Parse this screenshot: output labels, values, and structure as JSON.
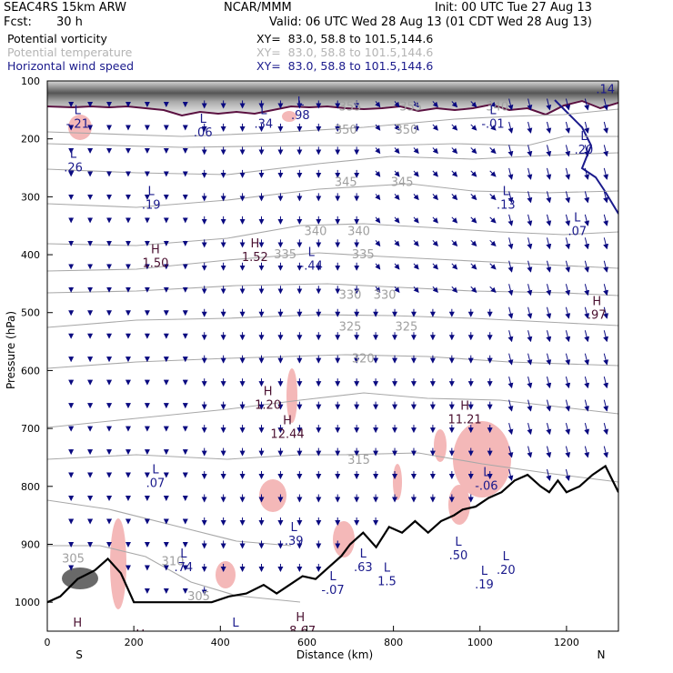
{
  "header": {
    "model": "SEAC4RS 15km ARW",
    "center": "NCAR/MMM",
    "init": "Init: 00 UTC Tue 27 Aug 13",
    "fcst_label": "Fcst:",
    "fcst_value": "30 h",
    "valid": "Valid: 06 UTC Wed 28 Aug 13 (01 CDT Wed 28 Aug 13)"
  },
  "legend": [
    {
      "field": "Potential vorticity",
      "xy": "XY=  83.0, 58.8 to 101.5,144.6",
      "color": "#000000"
    },
    {
      "field": "Potential temperature",
      "xy": "XY=  83.0, 58.8 to 101.5,144.6",
      "color": "#b4b4b4"
    },
    {
      "field": "Horizontal wind speed",
      "xy": "XY=  83.0, 58.8 to 101.5,144.6",
      "color": "#1a1a8c"
    }
  ],
  "colors": {
    "pv_fill": "#f4b8b8",
    "pv_contour": "#5a1040",
    "theta": "#a8a8a8",
    "wind": "#0a0a80",
    "terrain": "#000000"
  },
  "chart_data": {
    "type": "cross-section",
    "xlabel": "Distance (km)",
    "ylabel": "Pressure (hPa)",
    "xlim": [
      0,
      1320
    ],
    "ylim": [
      1050,
      100
    ],
    "x_ticks": [
      "0",
      "200",
      "400",
      "600",
      "800",
      "1000",
      "1200"
    ],
    "y_ticks": [
      "100",
      "200",
      "300",
      "400",
      "500",
      "600",
      "700",
      "800",
      "900",
      "1000"
    ],
    "endpoints": {
      "left": "S",
      "right": "N"
    },
    "theta_labels": [
      {
        "text": "355",
        "x": 700,
        "p": 145
      },
      {
        "text": "355",
        "x": 840,
        "p": 145
      },
      {
        "text": "350",
        "x": 690,
        "p": 185
      },
      {
        "text": "350",
        "x": 830,
        "p": 185
      },
      {
        "text": "345",
        "x": 690,
        "p": 275
      },
      {
        "text": "345",
        "x": 820,
        "p": 275
      },
      {
        "text": "340",
        "x": 620,
        "p": 360
      },
      {
        "text": "340",
        "x": 720,
        "p": 360
      },
      {
        "text": "335",
        "x": 550,
        "p": 400
      },
      {
        "text": "335",
        "x": 730,
        "p": 400
      },
      {
        "text": "330",
        "x": 700,
        "p": 470
      },
      {
        "text": "330",
        "x": 780,
        "p": 470
      },
      {
        "text": "325",
        "x": 700,
        "p": 525
      },
      {
        "text": "325",
        "x": 830,
        "p": 525
      },
      {
        "text": "320",
        "x": 730,
        "p": 580
      },
      {
        "text": "315",
        "x": 720,
        "p": 755
      },
      {
        "text": "310",
        "x": 290,
        "p": 930
      },
      {
        "text": "305",
        "x": 60,
        "p": 925
      },
      {
        "text": "305",
        "x": 350,
        "p": 990
      },
      {
        "text": "340",
        "x": 1040,
        "p": 145
      }
    ],
    "extrema": [
      {
        "type": "L",
        "value": "-.21",
        "x": 70,
        "p": 170
      },
      {
        "type": "L",
        "value": ".26",
        "x": 60,
        "p": 245
      },
      {
        "type": "L",
        "value": ".06",
        "x": 360,
        "p": 185
      },
      {
        "type": "L",
        "value": ".34",
        "x": 500,
        "p": 170
      },
      {
        "type": "L",
        "value": ".98",
        "x": 585,
        "p": 155
      },
      {
        "type": "L",
        "value": ".19",
        "x": 240,
        "p": 310
      },
      {
        "type": "L",
        "value": "-.01",
        "x": 1030,
        "p": 170
      },
      {
        "type": "L",
        "value": ".13",
        "x": 1060,
        "p": 310
      },
      {
        "type": "L",
        "value": ".07",
        "x": 1225,
        "p": 355
      },
      {
        "type": "H",
        "value": "1.50",
        "x": 250,
        "p": 410
      },
      {
        "type": "H",
        "value": "1.52",
        "x": 480,
        "p": 400
      },
      {
        "type": "L",
        "value": "-.44",
        "x": 610,
        "p": 415
      },
      {
        "type": "H",
        "value": ".97",
        "x": 1270,
        "p": 500
      },
      {
        "type": "H",
        "value": "1.20",
        "x": 510,
        "p": 655
      },
      {
        "type": "H",
        "value": "12.44",
        "x": 555,
        "p": 705
      },
      {
        "type": "H",
        "value": "11.21",
        "x": 965,
        "p": 680
      },
      {
        "type": "L",
        "value": ".07",
        "x": 250,
        "p": 790
      },
      {
        "type": "L",
        "value": "-.06",
        "x": 1015,
        "p": 795
      },
      {
        "type": "L",
        "value": ".39",
        "x": 570,
        "p": 890
      },
      {
        "type": "L",
        "value": ".74",
        "x": 315,
        "p": 935
      },
      {
        "type": "L",
        "value": ".63",
        "x": 730,
        "p": 935
      },
      {
        "type": "L",
        "value": "-.07",
        "x": 660,
        "p": 975
      },
      {
        "type": "L",
        "value": ".50",
        "x": 950,
        "p": 915
      },
      {
        "type": "L",
        "value": ".19",
        "x": 1010,
        "p": 965
      },
      {
        "type": "L",
        "value": ".20",
        "x": 1060,
        "p": 940
      },
      {
        "type": "L",
        "value": "1.5",
        "x": 785,
        "p": 960
      },
      {
        "type": "H",
        "value": "-8.67",
        "x": 585,
        "p": 1045
      },
      {
        "type": "H",
        "value": "5.05",
        "x": 70,
        "p": 1055
      },
      {
        "type": "H",
        "value": "5.96",
        "x": 215,
        "p": 1075
      },
      {
        "type": "L",
        "value": "-.21",
        "x": 435,
        "p": 1055
      },
      {
        "type": "L",
        "value": ".14",
        "x": 1290,
        "p": 110
      },
      {
        "type": "L",
        "value": ".20",
        "x": 1240,
        "p": 215
      }
    ],
    "terrain": [
      [
        0,
        1000
      ],
      [
        30,
        990
      ],
      [
        70,
        960
      ],
      [
        110,
        945
      ],
      [
        140,
        925
      ],
      [
        170,
        950
      ],
      [
        200,
        1000
      ],
      [
        260,
        1000
      ],
      [
        320,
        1000
      ],
      [
        380,
        1000
      ],
      [
        420,
        990
      ],
      [
        460,
        985
      ],
      [
        500,
        970
      ],
      [
        530,
        985
      ],
      [
        560,
        970
      ],
      [
        590,
        955
      ],
      [
        620,
        960
      ],
      [
        650,
        940
      ],
      [
        680,
        920
      ],
      [
        700,
        900
      ],
      [
        730,
        880
      ],
      [
        760,
        905
      ],
      [
        790,
        870
      ],
      [
        820,
        880
      ],
      [
        850,
        860
      ],
      [
        880,
        880
      ],
      [
        910,
        860
      ],
      [
        940,
        850
      ],
      [
        960,
        840
      ],
      [
        990,
        835
      ],
      [
        1020,
        820
      ],
      [
        1050,
        810
      ],
      [
        1080,
        790
      ],
      [
        1110,
        780
      ],
      [
        1140,
        800
      ],
      [
        1160,
        810
      ],
      [
        1180,
        790
      ],
      [
        1200,
        810
      ],
      [
        1230,
        800
      ],
      [
        1260,
        780
      ],
      [
        1290,
        765
      ],
      [
        1320,
        810
      ]
    ]
  }
}
